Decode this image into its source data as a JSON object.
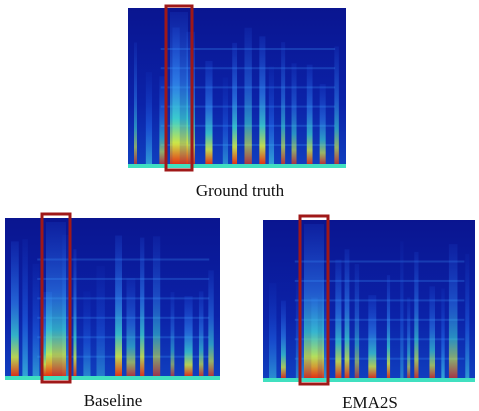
{
  "figure": {
    "panels": [
      {
        "caption": "Ground truth"
      },
      {
        "caption": "Baseline"
      },
      {
        "caption": "EMA2S"
      }
    ]
  }
}
